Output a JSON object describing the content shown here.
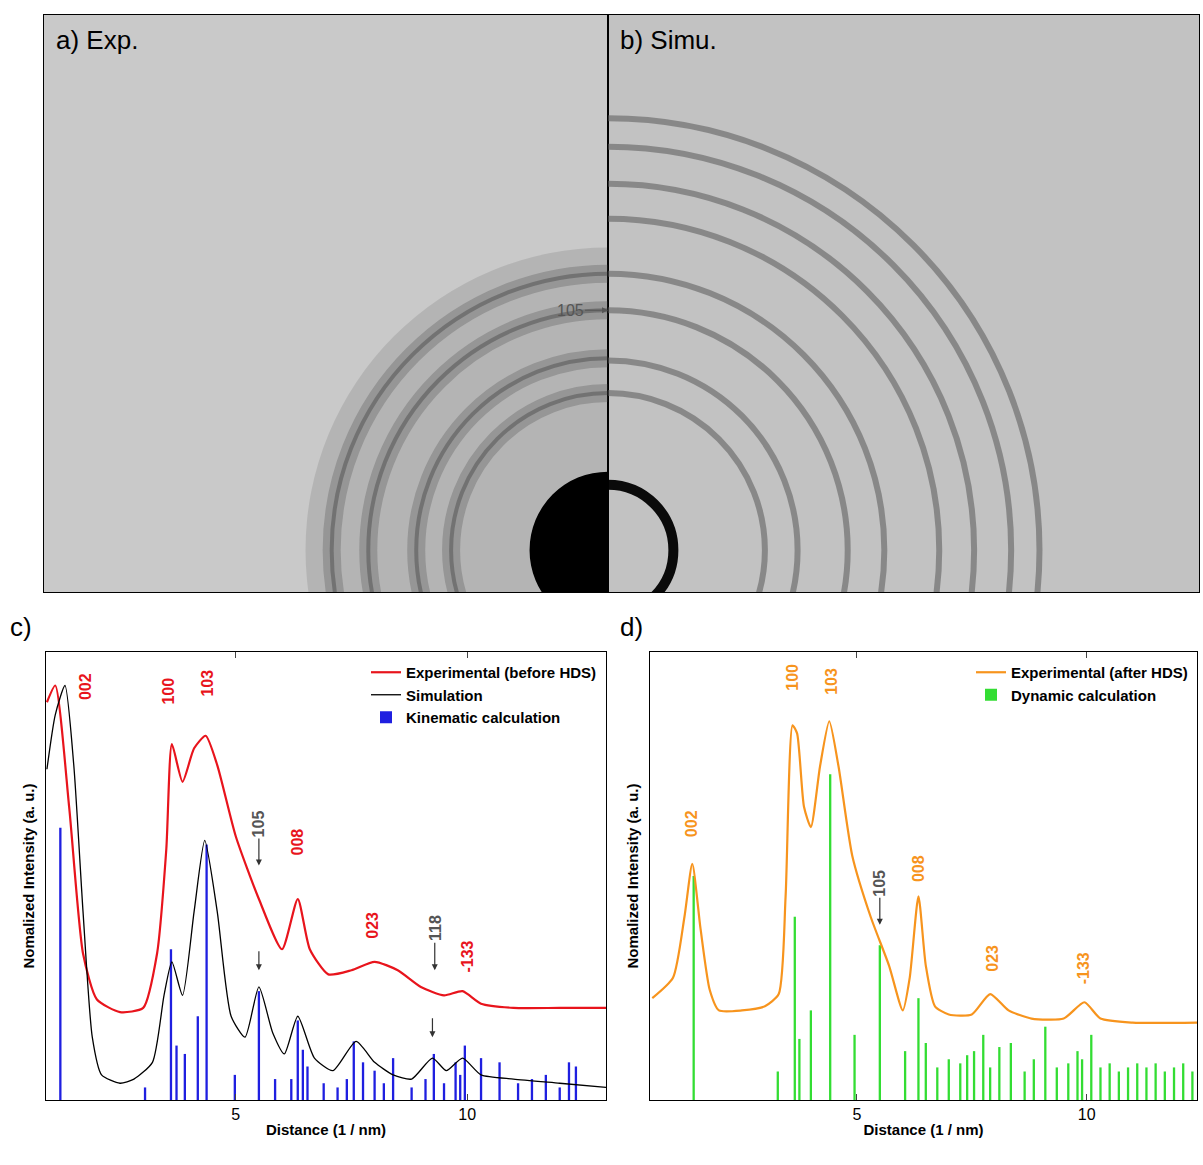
{
  "chart_data": [
    {
      "type": "diffraction",
      "title": "a) Exp.",
      "line_style": "blurred",
      "xlim": [
        -12.94,
        0
      ],
      "ylim": [
        -0.96,
        12.27
      ],
      "tick_labels": false,
      "rings": [
        3.6,
        4.4,
        5.5,
        6.34
      ],
      "beam_stop": 1.8,
      "arrow_labels": [
        {
          "text": "105",
          "x": 0,
          "y": 5.5,
          "color": "#555555"
        }
      ]
    },
    {
      "type": "diffraction",
      "title": "b) Simu.",
      "line_style": "solid",
      "xlim": [
        0,
        13.56
      ],
      "ylim": [
        -0.96,
        12.27
      ],
      "tick_labels": false,
      "rings": [
        1.5,
        3.6,
        4.35,
        5.5,
        6.34,
        7.6,
        8.4,
        9.25,
        9.9
      ]
    },
    {
      "type": "line",
      "title": "c)",
      "x_label": "Distance (1 / nm)",
      "y_label": "Nomalized Intensity (a. u.)",
      "xlim": [
        0.9,
        13.0
      ],
      "xticks": [
        5,
        10
      ],
      "ylim": [
        0,
        1.07
      ],
      "tick_labels": "x",
      "legend": "upper right",
      "series": [
        {
          "name": "Experimental (before HDS)",
          "type": "line",
          "color": "#e8141c",
          "line_style": "solid",
          "x": [
            0.92,
            1.1,
            1.4,
            1.7,
            2.0,
            2.5,
            3.0,
            3.3,
            3.5,
            3.62,
            3.85,
            4.1,
            4.35,
            4.6,
            5.0,
            5.5,
            6.0,
            6.34,
            6.6,
            7.0,
            7.5,
            8.0,
            8.5,
            9.0,
            9.5,
            9.9,
            10.3,
            11.0,
            12.0,
            13.0
          ],
          "values": [
            0.95,
            0.99,
            0.7,
            0.35,
            0.24,
            0.21,
            0.22,
            0.35,
            0.6,
            0.85,
            0.76,
            0.84,
            0.87,
            0.8,
            0.63,
            0.48,
            0.36,
            0.48,
            0.36,
            0.3,
            0.31,
            0.33,
            0.31,
            0.27,
            0.25,
            0.26,
            0.23,
            0.22,
            0.22,
            0.22
          ]
        },
        {
          "name": "Simulation",
          "type": "line",
          "color": "#000000",
          "line_style": "solid",
          "x": [
            0.92,
            1.1,
            1.31,
            1.5,
            1.7,
            1.9,
            2.1,
            2.5,
            2.8,
            3.2,
            3.45,
            3.62,
            3.85,
            4.1,
            4.33,
            4.6,
            4.9,
            5.2,
            5.5,
            5.8,
            6.05,
            6.34,
            6.7,
            7.1,
            7.6,
            8.0,
            8.4,
            8.8,
            9.25,
            9.55,
            9.9,
            10.3,
            11.0,
            12.0,
            13.0
          ],
          "values": [
            0.79,
            0.92,
            0.99,
            0.8,
            0.45,
            0.15,
            0.06,
            0.04,
            0.05,
            0.09,
            0.25,
            0.33,
            0.25,
            0.45,
            0.62,
            0.45,
            0.2,
            0.15,
            0.27,
            0.16,
            0.11,
            0.2,
            0.1,
            0.07,
            0.14,
            0.09,
            0.06,
            0.05,
            0.1,
            0.07,
            0.1,
            0.06,
            0.05,
            0.04,
            0.03
          ]
        },
        {
          "name": "Kinematic calculation",
          "type": "bar",
          "color": "#1f1fe0",
          "x": [
            1.21,
            3.04,
            3.6,
            3.72,
            3.9,
            4.18,
            4.37,
            4.98,
            5.5,
            5.85,
            6.2,
            6.34,
            6.45,
            6.55,
            6.9,
            7.2,
            7.4,
            7.55,
            7.75,
            8.0,
            8.2,
            8.4,
            8.8,
            9.1,
            9.28,
            9.5,
            9.75,
            9.85,
            9.95,
            10.3,
            10.7,
            11.1,
            11.4,
            11.7,
            12.0,
            12.2,
            12.35
          ],
          "values": [
            0.65,
            0.03,
            0.36,
            0.13,
            0.11,
            0.2,
            0.61,
            0.06,
            0.26,
            0.05,
            0.05,
            0.19,
            0.12,
            0.08,
            0.04,
            0.03,
            0.05,
            0.14,
            0.09,
            0.07,
            0.04,
            0.1,
            0.03,
            0.05,
            0.11,
            0.04,
            0.09,
            0.06,
            0.13,
            0.1,
            0.09,
            0.04,
            0.05,
            0.06,
            0.03,
            0.09,
            0.08
          ]
        }
      ],
      "peak_labels": [
        {
          "text": "002",
          "x": 1.75,
          "y": 0.95,
          "color": "#e8141c"
        },
        {
          "text": "100",
          "x": 3.55,
          "y": 0.94,
          "color": "#e8141c"
        },
        {
          "text": "103",
          "x": 4.4,
          "y": 0.96,
          "color": "#e8141c"
        },
        {
          "text": "008",
          "x": 6.34,
          "y": 0.58,
          "color": "#e8141c"
        },
        {
          "text": "023",
          "x": 7.95,
          "y": 0.38,
          "color": "#e8141c"
        },
        {
          "text": "-133",
          "x": 10.0,
          "y": 0.3,
          "color": "#e8141c"
        }
      ],
      "arrow_labels": [
        {
          "text": "105",
          "x": 5.5,
          "y": 0.56,
          "color": "#555555"
        },
        {
          "text": "118",
          "x": 9.3,
          "y": 0.31,
          "color": "#555555"
        }
      ],
      "arrows": [
        {
          "x": 5.5,
          "y": 0.31
        },
        {
          "x": 9.25,
          "y": 0.15
        }
      ]
    },
    {
      "type": "line",
      "title": "d)",
      "x_label": "Distance (1 / nm)",
      "y_label": "Nomalized Intensity (a. u.)",
      "xlim": [
        0.5,
        12.4
      ],
      "xticks": [
        5,
        10
      ],
      "ylim": [
        0,
        1.1
      ],
      "tick_labels": "x",
      "legend": "upper right",
      "series": [
        {
          "name": "Experimental (after HDS)",
          "type": "line",
          "color": "#f7941d",
          "line_style": "solid",
          "x": [
            0.55,
            1.0,
            1.25,
            1.42,
            1.6,
            1.8,
            2.0,
            2.5,
            3.0,
            3.3,
            3.45,
            3.6,
            3.7,
            3.85,
            4.0,
            4.2,
            4.4,
            4.6,
            4.9,
            5.3,
            5.7,
            6.0,
            6.15,
            6.34,
            6.5,
            6.7,
            7.0,
            7.5,
            7.9,
            8.3,
            8.8,
            9.5,
            9.95,
            10.3,
            11.0,
            12.4
          ],
          "values": [
            0.25,
            0.3,
            0.45,
            0.58,
            0.42,
            0.27,
            0.22,
            0.22,
            0.23,
            0.26,
            0.5,
            0.92,
            0.9,
            0.72,
            0.67,
            0.82,
            0.93,
            0.82,
            0.6,
            0.45,
            0.33,
            0.22,
            0.3,
            0.5,
            0.33,
            0.23,
            0.21,
            0.21,
            0.26,
            0.22,
            0.2,
            0.2,
            0.24,
            0.2,
            0.19,
            0.19
          ]
        },
        {
          "name": "Dynamic calculation",
          "type": "bar",
          "color": "#33dd33",
          "x": [
            1.45,
            3.28,
            3.65,
            3.75,
            4.0,
            4.42,
            4.95,
            5.5,
            6.05,
            6.34,
            6.5,
            6.75,
            7.0,
            7.25,
            7.4,
            7.55,
            7.75,
            7.9,
            8.1,
            8.35,
            8.65,
            8.85,
            9.1,
            9.35,
            9.6,
            9.8,
            9.9,
            10.1,
            10.3,
            10.5,
            10.7,
            10.9,
            11.1,
            11.3,
            11.5,
            11.7,
            11.9,
            12.1,
            12.3
          ],
          "values": [
            0.55,
            0.07,
            0.45,
            0.15,
            0.22,
            0.8,
            0.16,
            0.38,
            0.12,
            0.25,
            0.14,
            0.08,
            0.1,
            0.09,
            0.11,
            0.12,
            0.16,
            0.08,
            0.13,
            0.14,
            0.07,
            0.1,
            0.18,
            0.08,
            0.09,
            0.12,
            0.1,
            0.16,
            0.08,
            0.09,
            0.07,
            0.08,
            0.09,
            0.08,
            0.09,
            0.07,
            0.08,
            0.09,
            0.07
          ]
        }
      ],
      "peak_labels": [
        {
          "text": "002",
          "x": 1.42,
          "y": 0.64,
          "color": "#f7941d"
        },
        {
          "text": "100",
          "x": 3.6,
          "y": 1.0,
          "color": "#f7941d"
        },
        {
          "text": "103",
          "x": 4.45,
          "y": 0.99,
          "color": "#f7941d"
        },
        {
          "text": "008",
          "x": 6.34,
          "y": 0.53,
          "color": "#f7941d"
        },
        {
          "text": "023",
          "x": 7.95,
          "y": 0.31,
          "color": "#f7941d"
        },
        {
          "text": "-133",
          "x": 9.95,
          "y": 0.28,
          "color": "#f7941d"
        }
      ],
      "arrow_labels": [
        {
          "text": "105",
          "x": 5.5,
          "y": 0.43,
          "color": "#555555"
        }
      ]
    }
  ]
}
